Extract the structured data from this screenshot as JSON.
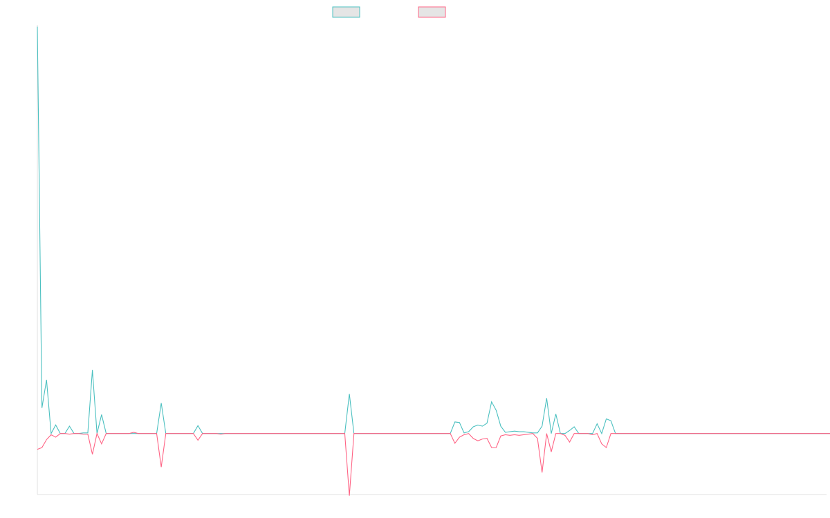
{
  "colors": {
    "series_a": "#4bc0c0",
    "series_b": "#ff6384",
    "legend_fill": "#e5e5e5",
    "axis": "#e0e0e0"
  },
  "chart_data": {
    "type": "line",
    "title": "",
    "xlabel": "",
    "ylabel": "",
    "grid": false,
    "legend_position": "top-center",
    "ylim": [
      -1.0,
      6.7
    ],
    "x_count": 173,
    "series": [
      {
        "name": "",
        "color": "#4bc0c0",
        "values": [
          6.67,
          0.42,
          0.88,
          0,
          0.14,
          0,
          0,
          0.12,
          0,
          0,
          0.01,
          0.01,
          1.04,
          0,
          0.31,
          0,
          0,
          0,
          0,
          0,
          0,
          0,
          0,
          0,
          0,
          0,
          0,
          0.5,
          0,
          0,
          0,
          0,
          0,
          0,
          0,
          0.13,
          0,
          0,
          0,
          0,
          0,
          0,
          0,
          0,
          0,
          0,
          0,
          0,
          0,
          0,
          0,
          0,
          0,
          0,
          0,
          0,
          0,
          0,
          0,
          0,
          0,
          0,
          0,
          0,
          0,
          0,
          0,
          0,
          0.65,
          0,
          0,
          0,
          0,
          0,
          0,
          0,
          0,
          0,
          0,
          0,
          0,
          0,
          0,
          0,
          0,
          0,
          0,
          0,
          0,
          0,
          0,
          0.19,
          0.18,
          0.01,
          0.03,
          0.11,
          0.14,
          0.12,
          0.17,
          0.52,
          0.38,
          0.12,
          0.02,
          0.03,
          0.04,
          0.03,
          0.03,
          0.02,
          0.01,
          0.01,
          0.12,
          0.58,
          0,
          0.32,
          0,
          0,
          0.05,
          0.11,
          0,
          0,
          0,
          0,
          0.16,
          0,
          0.24,
          0.21,
          0,
          0,
          0,
          0,
          0,
          0,
          0,
          0,
          0,
          0,
          0,
          0,
          0,
          0,
          0,
          0,
          0,
          0,
          0,
          0,
          0,
          0,
          0,
          0,
          0,
          0,
          0,
          0,
          0,
          0,
          0,
          0,
          0,
          0,
          0,
          0,
          0,
          0,
          0,
          0,
          0,
          0,
          0,
          0,
          0,
          0,
          0,
          0,
          0
        ]
      },
      {
        "name": "",
        "color": "#ff6384",
        "values": [
          -0.26,
          -0.23,
          -0.1,
          -0.02,
          -0.06,
          0,
          0,
          -0.01,
          0,
          0,
          -0.01,
          -0.01,
          -0.34,
          0,
          -0.17,
          0,
          0,
          0,
          0,
          0,
          0,
          0.02,
          0,
          0,
          0,
          0,
          0,
          -0.55,
          0,
          0,
          0,
          0,
          0,
          0,
          0,
          -0.11,
          0,
          0,
          0,
          0,
          -0.01,
          0,
          0,
          0,
          0,
          0,
          0,
          0,
          0,
          0,
          0,
          0,
          0,
          0,
          0,
          0,
          0,
          0,
          0,
          0,
          0,
          0,
          0,
          0,
          0,
          0,
          0,
          0,
          -1.02,
          0,
          0,
          0,
          0,
          0,
          0,
          0,
          0,
          0,
          0,
          0,
          0,
          0,
          0,
          0,
          0,
          0,
          0,
          0,
          0,
          0,
          0,
          -0.16,
          -0.06,
          -0.02,
          0,
          -0.08,
          -0.12,
          -0.09,
          -0.08,
          -0.23,
          -0.23,
          -0.04,
          -0.02,
          -0.03,
          -0.02,
          -0.03,
          -0.02,
          -0.01,
          0,
          -0.08,
          -0.64,
          0,
          -0.3,
          0,
          0,
          -0.03,
          -0.14,
          0,
          0,
          0,
          0,
          -0.02,
          0,
          -0.17,
          -0.23,
          0,
          0,
          0,
          0,
          0,
          0,
          0,
          0,
          0,
          0,
          0,
          0,
          0,
          0,
          0,
          0,
          0,
          0,
          0,
          0,
          0,
          0,
          0,
          0,
          0,
          0,
          0,
          0,
          0,
          0,
          0,
          0,
          0,
          0,
          0,
          0,
          0,
          0,
          0,
          0,
          0,
          0,
          0,
          0,
          0,
          0,
          0,
          0,
          0
        ]
      }
    ]
  }
}
